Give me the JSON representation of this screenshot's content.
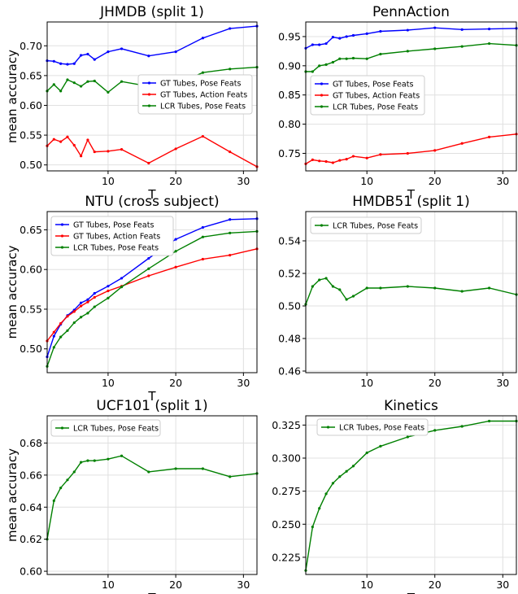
{
  "chart_data": [
    {
      "type": "line",
      "title": "JHMDB (split 1)",
      "xlabel": "T",
      "ylabel": "mean accuracy",
      "xlim": [
        1,
        32
      ],
      "ylim": [
        0.49,
        0.74
      ],
      "xticks": [
        10,
        20,
        30
      ],
      "yticks": [
        0.5,
        0.55,
        0.6,
        0.65,
        0.7
      ],
      "yformat": 2,
      "grid": true,
      "legend": "right",
      "series": [
        {
          "name": "GT Tubes, Pose Feats",
          "color": "#0000ff",
          "x": [
            1,
            2,
            3,
            4,
            5,
            6,
            7,
            8,
            10,
            12,
            16,
            20,
            24,
            28,
            32
          ],
          "y": [
            0.675,
            0.674,
            0.67,
            0.669,
            0.67,
            0.684,
            0.686,
            0.677,
            0.69,
            0.695,
            0.683,
            0.69,
            0.713,
            0.729,
            0.733
          ]
        },
        {
          "name": "GT Tubes, Action Feats",
          "color": "#ff0000",
          "x": [
            1,
            2,
            3,
            4,
            5,
            6,
            7,
            8,
            10,
            12,
            16,
            20,
            24,
            28,
            32
          ],
          "y": [
            0.532,
            0.543,
            0.539,
            0.547,
            0.533,
            0.515,
            0.542,
            0.522,
            0.523,
            0.526,
            0.503,
            0.527,
            0.548,
            0.522,
            0.497
          ]
        },
        {
          "name": "LCR Tubes, Pose Feats",
          "color": "#008000",
          "x": [
            1,
            2,
            3,
            4,
            5,
            6,
            7,
            8,
            10,
            12,
            16,
            20,
            24,
            28,
            32
          ],
          "y": [
            0.624,
            0.635,
            0.624,
            0.643,
            0.638,
            0.632,
            0.64,
            0.641,
            0.622,
            0.64,
            0.632,
            0.635,
            0.655,
            0.661,
            0.664
          ]
        }
      ]
    },
    {
      "type": "line",
      "title": "PennAction",
      "xlabel": "T",
      "ylabel": "",
      "xlim": [
        1,
        32
      ],
      "ylim": [
        0.72,
        0.975
      ],
      "xticks": [
        10,
        20,
        30
      ],
      "yticks": [
        0.75,
        0.8,
        0.85,
        0.9,
        0.95
      ],
      "yformat": 2,
      "grid": true,
      "legend": "center-left",
      "series": [
        {
          "name": "GT Tubes, Pose Feats",
          "color": "#0000ff",
          "x": [
            1,
            2,
            3,
            4,
            5,
            6,
            7,
            8,
            10,
            12,
            16,
            20,
            24,
            28,
            32
          ],
          "y": [
            0.93,
            0.936,
            0.936,
            0.938,
            0.949,
            0.947,
            0.95,
            0.952,
            0.955,
            0.959,
            0.961,
            0.965,
            0.962,
            0.963,
            0.964
          ]
        },
        {
          "name": "GT Tubes, Action Feats",
          "color": "#ff0000",
          "x": [
            1,
            2,
            3,
            4,
            5,
            6,
            7,
            8,
            10,
            12,
            16,
            20,
            24,
            28,
            32
          ],
          "y": [
            0.732,
            0.739,
            0.737,
            0.736,
            0.734,
            0.738,
            0.74,
            0.745,
            0.742,
            0.748,
            0.75,
            0.755,
            0.767,
            0.778,
            0.783
          ]
        },
        {
          "name": "LCR Tubes, Pose Feats",
          "color": "#008000",
          "x": [
            1,
            2,
            3,
            4,
            5,
            6,
            7,
            8,
            10,
            12,
            16,
            20,
            24,
            28,
            32
          ],
          "y": [
            0.89,
            0.89,
            0.9,
            0.902,
            0.906,
            0.912,
            0.912,
            0.913,
            0.912,
            0.92,
            0.925,
            0.929,
            0.933,
            0.938,
            0.935
          ]
        }
      ]
    },
    {
      "type": "line",
      "title": "NTU (cross subject)",
      "xlabel": "T",
      "ylabel": "mean accuracy",
      "xlim": [
        1,
        32
      ],
      "ylim": [
        0.47,
        0.673
      ],
      "xticks": [
        10,
        20,
        30
      ],
      "yticks": [
        0.5,
        0.55,
        0.6,
        0.65
      ],
      "yformat": 2,
      "grid": true,
      "legend": "top-left",
      "series": [
        {
          "name": "GT Tubes, Pose Feats",
          "color": "#0000ff",
          "x": [
            1,
            2,
            3,
            4,
            5,
            6,
            7,
            8,
            10,
            12,
            16,
            20,
            24,
            28,
            32
          ],
          "y": [
            0.49,
            0.516,
            0.531,
            0.542,
            0.549,
            0.558,
            0.562,
            0.57,
            0.579,
            0.589,
            0.614,
            0.638,
            0.653,
            0.663,
            0.664
          ]
        },
        {
          "name": "GT Tubes, Action Feats",
          "color": "#ff0000",
          "x": [
            1,
            2,
            3,
            4,
            5,
            6,
            7,
            8,
            10,
            12,
            16,
            20,
            24,
            28,
            32
          ],
          "y": [
            0.51,
            0.521,
            0.532,
            0.541,
            0.547,
            0.554,
            0.559,
            0.565,
            0.573,
            0.579,
            0.592,
            0.603,
            0.613,
            0.618,
            0.626
          ]
        },
        {
          "name": "LCR Tubes, Pose Feats",
          "color": "#008000",
          "x": [
            1,
            2,
            3,
            4,
            5,
            6,
            7,
            8,
            10,
            12,
            16,
            20,
            24,
            28,
            32
          ],
          "y": [
            0.478,
            0.502,
            0.515,
            0.523,
            0.533,
            0.54,
            0.545,
            0.553,
            0.564,
            0.578,
            0.601,
            0.623,
            0.641,
            0.646,
            0.648
          ]
        }
      ]
    },
    {
      "type": "line",
      "title": "HMDB51 (split 1)",
      "xlabel": "",
      "ylabel": "",
      "xlim": [
        1,
        32
      ],
      "ylim": [
        0.459,
        0.558
      ],
      "xticks": [
        10,
        20,
        30
      ],
      "yticks": [
        0.46,
        0.48,
        0.5,
        0.52,
        0.54
      ],
      "yformat": 2,
      "grid": true,
      "legend": "top-left",
      "series": [
        {
          "name": "LCR Tubes, Pose Feats",
          "color": "#008000",
          "x": [
            1,
            2,
            3,
            4,
            5,
            6,
            7,
            8,
            10,
            12,
            16,
            20,
            24,
            28,
            32
          ],
          "y": [
            0.501,
            0.512,
            0.516,
            0.517,
            0.512,
            0.51,
            0.504,
            0.506,
            0.511,
            0.511,
            0.512,
            0.511,
            0.509,
            0.511,
            0.507
          ]
        }
      ]
    },
    {
      "type": "line",
      "title": "UCF101 (split 1)",
      "xlabel": "T",
      "ylabel": "mean accuracy",
      "xlim": [
        1,
        32
      ],
      "ylim": [
        0.598,
        0.697
      ],
      "xticks": [
        10,
        20,
        30
      ],
      "yticks": [
        0.6,
        0.62,
        0.64,
        0.66,
        0.68
      ],
      "yformat": 2,
      "grid": true,
      "legend": "top-left",
      "series": [
        {
          "name": "LCR Tubes, Pose Feats",
          "color": "#008000",
          "x": [
            1,
            2,
            3,
            4,
            5,
            6,
            7,
            8,
            10,
            12,
            16,
            20,
            24,
            28,
            32
          ],
          "y": [
            0.62,
            0.644,
            0.652,
            0.657,
            0.662,
            0.668,
            0.669,
            0.669,
            0.67,
            0.672,
            0.662,
            0.664,
            0.664,
            0.659,
            0.661
          ]
        }
      ]
    },
    {
      "type": "line",
      "title": "Kinetics",
      "xlabel": "T",
      "ylabel": "",
      "xlim": [
        1,
        32
      ],
      "ylim": [
        0.212,
        0.332
      ],
      "xticks": [
        10,
        20,
        30
      ],
      "yticks": [
        0.225,
        0.25,
        0.275,
        0.3,
        0.325
      ],
      "yformat": 3,
      "grid": true,
      "legend": "top-left",
      "series": [
        {
          "name": "LCR Tubes, Pose Feats",
          "color": "#008000",
          "x": [
            1,
            2,
            3,
            4,
            5,
            6,
            7,
            8,
            10,
            12,
            16,
            20,
            24,
            28,
            32
          ],
          "y": [
            0.215,
            0.248,
            0.262,
            0.273,
            0.281,
            0.286,
            0.29,
            0.294,
            0.304,
            0.309,
            0.316,
            0.321,
            0.324,
            0.328,
            0.328
          ]
        }
      ]
    }
  ]
}
